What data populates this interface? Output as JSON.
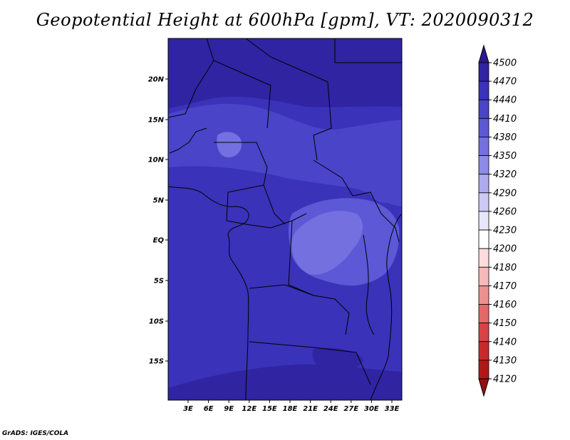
{
  "title": "Geopotential Height at 600hPa [gpm], VT: 2020090312",
  "footer": "GrADS: IGES/COLA",
  "map": {
    "lat_ticks": [
      "20N",
      "15N",
      "10N",
      "5N",
      "EQ",
      "5S",
      "10S",
      "15S"
    ],
    "lon_ticks": [
      "3E",
      "6E",
      "9E",
      "12E",
      "15E",
      "18E",
      "21E",
      "24E",
      "27E",
      "30E",
      "33E"
    ]
  },
  "colorbar": {
    "levels": [
      "4500",
      "4470",
      "4440",
      "4410",
      "4380",
      "4350",
      "4320",
      "4290",
      "4260",
      "4230",
      "4200",
      "4180",
      "4170",
      "4160",
      "4150",
      "4140",
      "4130",
      "4120"
    ],
    "colors": [
      "#2a1a8e",
      "#3024a3",
      "#3a32b8",
      "#4a44c8",
      "#5c58d6",
      "#7470e0",
      "#8e8ae8",
      "#aeaaee",
      "#cccaf4",
      "#e8e6fa",
      "#ffffff",
      "#fcdcdc",
      "#f6b8b8",
      "#ee9090",
      "#e46868",
      "#d84444",
      "#c82a2a",
      "#b01818",
      "#961010"
    ]
  }
}
